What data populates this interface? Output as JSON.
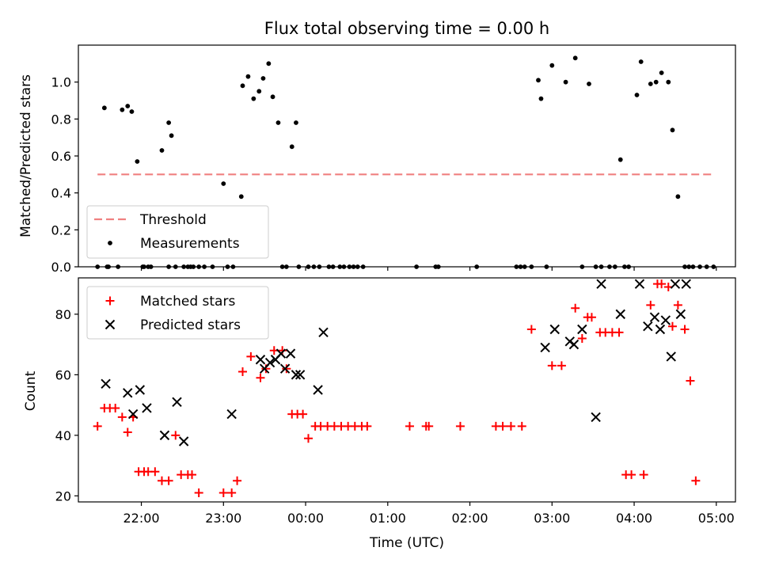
{
  "chart_data": [
    {
      "type": "scatter",
      "title": "Flux total observing time = 0.00 h",
      "xlabel": "",
      "ylabel": "Matched/Predicted stars",
      "xlim": [
        "21:14",
        "05:14"
      ],
      "ylim": [
        0,
        1.2
      ],
      "yticks": [
        "0.0",
        "0.2",
        "0.4",
        "0.6",
        "0.8",
        "1.0"
      ],
      "legend_position": "lower-left",
      "threshold": {
        "name": "Threshold",
        "value": 0.5,
        "x_range": [
          "21:28",
          "04:58"
        ],
        "color": "#f08080"
      },
      "series": [
        {
          "name": "Measurements",
          "color": "#000000",
          "x": [
            "21:28",
            "21:33",
            "21:35",
            "21:36",
            "21:43",
            "21:46",
            "21:50",
            "21:53",
            "21:57",
            "22:01",
            "22:02",
            "22:05",
            "22:07",
            "22:15",
            "22:20",
            "22:20",
            "22:22",
            "22:25",
            "22:31",
            "22:34",
            "22:36",
            "22:38",
            "22:42",
            "22:46",
            "22:52",
            "23:00",
            "23:03",
            "23:07",
            "23:13",
            "23:14",
            "23:18",
            "23:22",
            "23:26",
            "23:29",
            "23:33",
            "23:36",
            "23:40",
            "23:43",
            "23:46",
            "23:50",
            "23:53",
            "23:55",
            "00:02",
            "00:06",
            "00:10",
            "00:17",
            "00:20",
            "00:25",
            "00:28",
            "00:32",
            "00:35",
            "00:38",
            "00:42",
            "01:21",
            "01:35",
            "01:37",
            "02:05",
            "02:34",
            "02:37",
            "02:40",
            "02:45",
            "02:50",
            "02:52",
            "02:56",
            "03:00",
            "03:10",
            "03:17",
            "03:22",
            "03:27",
            "03:32",
            "03:36",
            "03:42",
            "03:46",
            "03:50",
            "03:53",
            "03:56",
            "04:02",
            "04:05",
            "04:12",
            "04:16",
            "04:20",
            "04:25",
            "04:28",
            "04:32",
            "04:37",
            "04:40",
            "04:43",
            "04:48",
            "04:53",
            "04:58"
          ],
          "y": [
            0,
            0.86,
            0,
            0,
            0,
            0.85,
            0.87,
            0.84,
            0.57,
            0,
            0,
            0,
            0,
            0.63,
            0,
            0.78,
            0.71,
            0,
            0,
            0,
            0,
            0,
            0,
            0,
            0,
            0.45,
            0,
            0,
            0.38,
            0.98,
            1.03,
            0.91,
            0.95,
            1.02,
            1.1,
            0.92,
            0.78,
            0,
            0,
            0.65,
            0.78,
            0,
            0,
            0,
            0,
            0,
            0,
            0,
            0,
            0,
            0,
            0,
            0,
            0,
            0,
            0,
            0,
            0,
            0,
            0,
            0,
            1.01,
            0.91,
            0,
            1.09,
            1.0,
            1.13,
            0,
            0.99,
            0,
            0,
            0,
            0,
            0.58,
            0,
            0,
            0.93,
            1.11,
            0.99,
            1.0,
            1.05,
            1.0,
            0.74,
            0.38,
            0,
            0,
            0,
            0,
            0,
            0
          ]
        }
      ]
    },
    {
      "type": "scatter",
      "title": "",
      "xlabel": "Time (UTC)",
      "ylabel": "Count",
      "xlim": [
        "21:14",
        "05:14"
      ],
      "ylim": [
        18,
        92
      ],
      "xticks": [
        "22:00",
        "23:00",
        "00:00",
        "01:00",
        "02:00",
        "03:00",
        "04:00",
        "05:00"
      ],
      "yticks": [
        "20",
        "40",
        "60",
        "80"
      ],
      "legend_position": "upper-left",
      "series": [
        {
          "name": "Matched stars",
          "marker": "plus",
          "color": "#ff0000",
          "x": [
            "21:28",
            "21:33",
            "21:37",
            "21:41",
            "21:46",
            "21:50",
            "21:54",
            "21:58",
            "22:02",
            "22:05",
            "22:10",
            "22:15",
            "22:20",
            "22:25",
            "22:29",
            "22:34",
            "22:37",
            "22:42",
            "23:00",
            "23:06",
            "23:10",
            "23:14",
            "23:20",
            "23:27",
            "23:31",
            "23:37",
            "23:43",
            "23:46",
            "23:50",
            "23:54",
            "23:58",
            "00:02",
            "00:07",
            "00:11",
            "00:16",
            "00:21",
            "00:26",
            "00:31",
            "00:36",
            "00:41",
            "00:45",
            "01:16",
            "01:28",
            "01:30",
            "01:53",
            "02:19",
            "02:24",
            "02:30",
            "02:38",
            "02:45",
            "03:00",
            "03:07",
            "03:17",
            "03:22",
            "03:26",
            "03:29",
            "03:35",
            "03:39",
            "03:44",
            "03:49",
            "03:54",
            "03:58",
            "04:07",
            "04:12",
            "04:17",
            "04:20",
            "04:25",
            "04:28",
            "04:32",
            "04:37",
            "04:41",
            "04:45"
          ],
          "y": [
            43,
            49,
            49,
            49,
            46,
            41,
            46,
            28,
            28,
            28,
            28,
            25,
            25,
            40,
            27,
            27,
            27,
            21,
            21,
            21,
            25,
            61,
            66,
            59,
            62,
            68,
            68,
            62,
            47,
            47,
            47,
            39,
            43,
            43,
            43,
            43,
            43,
            43,
            43,
            43,
            43,
            43,
            43,
            43,
            43,
            43,
            43,
            43,
            43,
            75,
            63,
            63,
            82,
            72,
            79,
            79,
            74,
            74,
            74,
            74,
            27,
            27,
            27,
            83,
            90,
            90,
            89,
            76,
            83,
            75,
            58,
            25
          ]
        },
        {
          "name": "Predicted stars",
          "marker": "x",
          "color": "#000000",
          "x": [
            "21:34",
            "21:50",
            "21:54",
            "21:59",
            "22:04",
            "22:17",
            "22:26",
            "22:31",
            "23:06",
            "23:27",
            "23:30",
            "23:34",
            "23:38",
            "23:42",
            "23:45",
            "23:49",
            "23:53",
            "23:56",
            "00:09",
            "00:13",
            "02:55",
            "03:02",
            "03:13",
            "03:16",
            "03:22",
            "03:32",
            "03:36",
            "03:50",
            "04:04",
            "04:10",
            "04:15",
            "04:19",
            "04:23",
            "04:27",
            "04:30",
            "04:34",
            "04:38"
          ],
          "y": [
            57,
            54,
            47,
            55,
            49,
            40,
            51,
            38,
            47,
            65,
            62,
            64,
            65,
            67,
            62,
            67,
            60,
            60,
            55,
            74,
            69,
            75,
            71,
            70,
            75,
            46,
            90,
            80,
            90,
            76,
            79,
            75,
            78,
            66,
            90,
            80,
            90
          ]
        }
      ]
    }
  ]
}
